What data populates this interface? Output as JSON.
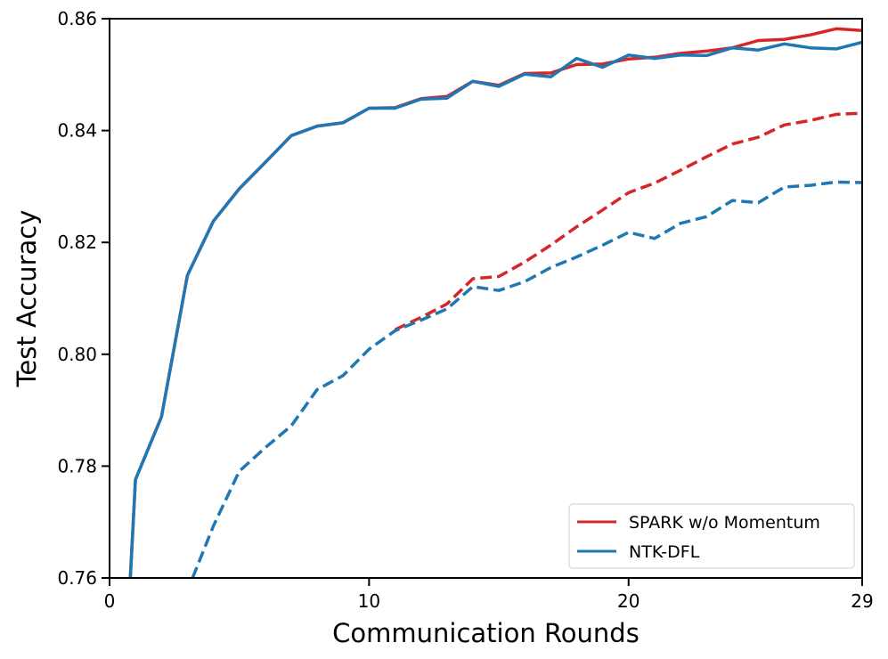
{
  "chart_data": {
    "type": "line",
    "title": "",
    "xlabel": "Communication Rounds",
    "ylabel": "Test Accuracy",
    "xlim": [
      0,
      29
    ],
    "ylim": [
      0.76,
      0.86
    ],
    "xticks": [
      0,
      10,
      20,
      29
    ],
    "yticks": [
      0.76,
      0.78,
      0.8,
      0.82,
      0.84,
      0.86
    ],
    "ytick_labels": [
      "0.76",
      "0.78",
      "0.80",
      "0.82",
      "0.84",
      "0.86"
    ],
    "grid": false,
    "legend_position": "lower-right",
    "legend": [
      "SPARK w/o Momentum",
      "NTK-DFL"
    ],
    "colors": {
      "spark": "#d62728",
      "ntk": "#1f77b4"
    },
    "series": [
      {
        "name": "SPARK w/o Momentum (solid)",
        "legend_key": "spark",
        "style": "solid",
        "x": [
          0.8,
          1,
          2,
          3,
          4,
          5,
          6,
          7,
          8,
          9,
          10,
          11,
          12,
          13,
          14,
          15,
          16,
          17,
          18,
          19,
          20,
          21,
          22,
          23,
          24,
          25,
          26,
          27,
          28,
          29
        ],
        "y": [
          0.76,
          0.7776,
          0.7888,
          0.8141,
          0.8238,
          0.8296,
          0.8343,
          0.8391,
          0.8408,
          0.8414,
          0.844,
          0.8441,
          0.8457,
          0.8461,
          0.8488,
          0.8481,
          0.8502,
          0.8503,
          0.8518,
          0.8519,
          0.8528,
          0.8531,
          0.8538,
          0.8542,
          0.8548,
          0.8561,
          0.8563,
          0.8571,
          0.8582,
          0.8579
        ]
      },
      {
        "name": "NTK-DFL (solid)",
        "legend_key": "ntk",
        "style": "solid",
        "x": [
          0.8,
          1,
          2,
          3,
          4,
          5,
          6,
          7,
          8,
          9,
          10,
          11,
          12,
          13,
          14,
          15,
          16,
          17,
          18,
          19,
          20,
          21,
          22,
          23,
          24,
          25,
          26,
          27,
          28,
          29
        ],
        "y": [
          0.76,
          0.7776,
          0.7888,
          0.8141,
          0.8238,
          0.8296,
          0.8343,
          0.8391,
          0.8408,
          0.8414,
          0.844,
          0.844,
          0.8456,
          0.8458,
          0.8488,
          0.8479,
          0.8501,
          0.8496,
          0.8529,
          0.8513,
          0.8535,
          0.8529,
          0.8535,
          0.8534,
          0.8548,
          0.8544,
          0.8555,
          0.8548,
          0.8546,
          0.8558
        ]
      },
      {
        "name": "SPARK w/o Momentum (dashed)",
        "legend_key": "spark",
        "style": "dashed",
        "x": [
          11,
          12,
          13,
          14,
          15,
          16,
          17,
          18,
          19,
          20,
          21,
          22,
          23,
          24,
          25,
          26,
          27,
          28,
          29
        ],
        "y": [
          0.8044,
          0.8066,
          0.809,
          0.8135,
          0.8139,
          0.8165,
          0.8195,
          0.8228,
          0.8258,
          0.8289,
          0.8306,
          0.8329,
          0.8353,
          0.8376,
          0.8388,
          0.841,
          0.8418,
          0.8429,
          0.8431
        ]
      },
      {
        "name": "NTK-DFL (dashed)",
        "legend_key": "ntk",
        "style": "dashed",
        "x": [
          3.2,
          4,
          5,
          6,
          7,
          8,
          9,
          10,
          11,
          12,
          13,
          14,
          15,
          16,
          17,
          18,
          19,
          20,
          21,
          22,
          23,
          24,
          25,
          26,
          27,
          28,
          29
        ],
        "y": [
          0.76,
          0.7693,
          0.7791,
          0.7833,
          0.7872,
          0.7937,
          0.7962,
          0.8009,
          0.8042,
          0.8061,
          0.8081,
          0.8121,
          0.8114,
          0.813,
          0.8155,
          0.8174,
          0.8195,
          0.8218,
          0.8207,
          0.8234,
          0.8246,
          0.8275,
          0.8271,
          0.8299,
          0.8302,
          0.8308,
          0.8307
        ]
      }
    ]
  }
}
